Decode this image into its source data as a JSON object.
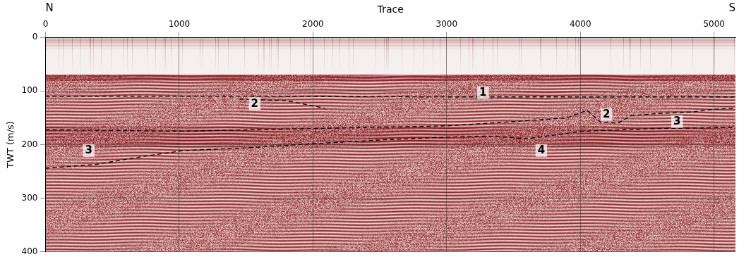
{
  "chart_data": {
    "type": "line",
    "direction_labels": [
      "N",
      "S"
    ],
    "x_label": "Trace",
    "y_label": "TWT (m/s)",
    "xlim": [
      0,
      5160
    ],
    "xticks": [
      0,
      1000,
      2000,
      3000,
      4000,
      5000
    ],
    "ylim": [
      0,
      400
    ],
    "yticks": [
      0,
      100,
      200,
      300,
      400
    ],
    "grid": true,
    "seafloor": 70,
    "series": [
      {
        "color": "#000000",
        "line_style": "dashed",
        "x": [
          0,
          1000,
          2000,
          3000,
          4000,
          5160
        ],
        "values": [
          110,
          110,
          110,
          111,
          111,
          111
        ]
      },
      {
        "color": "#000000",
        "line_style": "dashed",
        "x": [
          1450,
          1800,
          2090
        ],
        "values": [
          115,
          118,
          132
        ]
      },
      {
        "color": "#000000",
        "line_style": "dashed",
        "x": [
          0,
          1000,
          2000,
          3000,
          3500,
          3900,
          4050,
          4150,
          4280,
          4380,
          4580,
          4840,
          5000,
          5160
        ],
        "values": [
          172,
          175,
          170,
          165,
          157,
          150,
          136,
          158,
          160,
          146,
          142,
          139,
          134,
          132
        ]
      },
      {
        "color": "#000000",
        "line_style": "dashed",
        "x": [
          0,
          374,
          728,
          1036,
          1503,
          2015,
          2528,
          3000,
          3297,
          3605,
          3810,
          4015,
          4579,
          5160
        ],
        "values": [
          244,
          237,
          222,
          211,
          206,
          198,
          191,
          186,
          184,
          189,
          182,
          175,
          170,
          168
        ]
      }
    ],
    "annotations": [
      {
        "text": "1",
        "x": 3272,
        "y": 103
      },
      {
        "text": "2",
        "x": 1564,
        "y": 124
      },
      {
        "text": "2",
        "x": 4195,
        "y": 144
      },
      {
        "text": "3",
        "x": 4723,
        "y": 157
      },
      {
        "text": "3",
        "x": 323,
        "y": 211
      },
      {
        "text": "4",
        "x": 3708,
        "y": 211
      }
    ]
  }
}
